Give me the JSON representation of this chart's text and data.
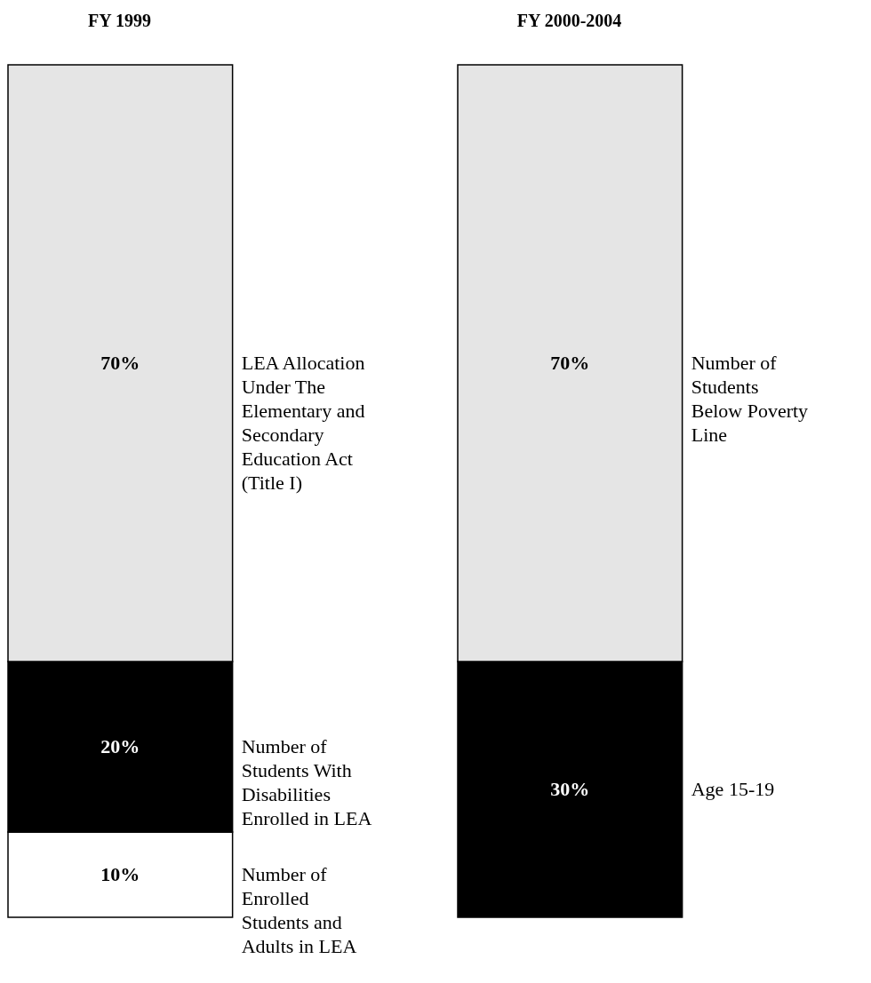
{
  "chart_data": [
    {
      "type": "bar",
      "title": "FY 1999",
      "categories": [
        null
      ],
      "stacked": true,
      "ylim": [
        0,
        100
      ],
      "tick_labels": false,
      "series": [
        {
          "name": "Number of Enrolled Students and Adults in LEA",
          "color": "#ffffff",
          "values": [
            10
          ],
          "value_labels": [
            "10%"
          ]
        },
        {
          "name": "Number of Students With Disabilities Enrolled in LEA",
          "color": "#000000",
          "values": [
            20
          ],
          "value_labels": [
            "20%"
          ]
        },
        {
          "name": "LEA Allocation Under The Elementary and Secondary Education Act (Title I)",
          "color": "#e5e5e5",
          "values": [
            70
          ],
          "value_labels": [
            "70%"
          ]
        }
      ]
    },
    {
      "type": "bar",
      "title": "FY 2000-2004",
      "categories": [
        null
      ],
      "stacked": true,
      "ylim": [
        0,
        100
      ],
      "tick_labels": false,
      "series": [
        {
          "name": "Age 15-19",
          "color": "#000000",
          "values": [
            30
          ],
          "value_labels": [
            "30%"
          ]
        },
        {
          "name": "Number of Students Below Poverty Line",
          "color": "#e5e5e5",
          "values": [
            70
          ],
          "value_labels": [
            "70%"
          ]
        }
      ]
    }
  ]
}
